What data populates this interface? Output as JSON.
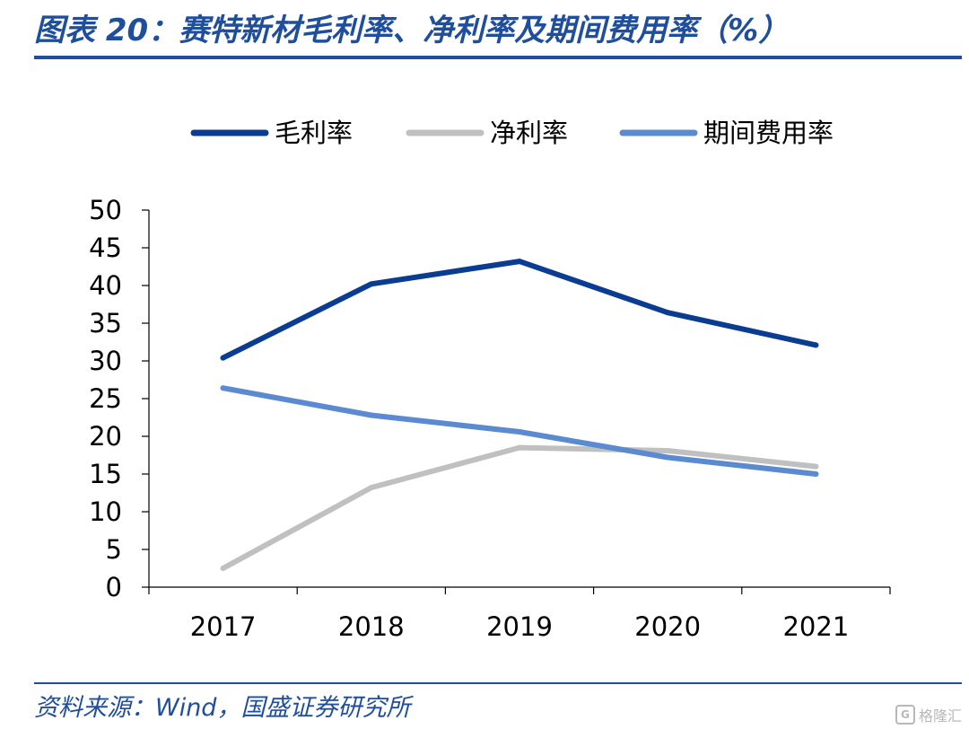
{
  "header": {
    "title": "图表 20：赛特新材毛利率、净利率及期间费用率（%）"
  },
  "footer": {
    "source": "资料来源：Wind，国盛证券研究所",
    "watermark": "格隆汇"
  },
  "colors": {
    "brand": "#1f4e9c",
    "gross": "#0a3d91",
    "net": "#c0c0c0",
    "expense": "#5a8ad0"
  },
  "chart_data": {
    "type": "line",
    "title": "赛特新材毛利率、净利率及期间费用率（%）",
    "xlabel": "",
    "ylabel": "",
    "categories": [
      "2017",
      "2018",
      "2019",
      "2020",
      "2021"
    ],
    "ylim": [
      0,
      50
    ],
    "yticks": [
      0,
      5,
      10,
      15,
      20,
      25,
      30,
      35,
      40,
      45,
      50
    ],
    "grid": false,
    "legend_position": "top",
    "series": [
      {
        "name": "毛利率",
        "color": "#0a3d91",
        "values": [
          30.4,
          40.2,
          43.2,
          36.4,
          32.1
        ]
      },
      {
        "name": "净利率",
        "color": "#c0c0c0",
        "values": [
          2.5,
          13.2,
          18.5,
          18.1,
          16.0
        ]
      },
      {
        "name": "期间费用率",
        "color": "#5a8ad0",
        "values": [
          26.4,
          22.8,
          20.6,
          17.2,
          15.0
        ]
      }
    ]
  }
}
